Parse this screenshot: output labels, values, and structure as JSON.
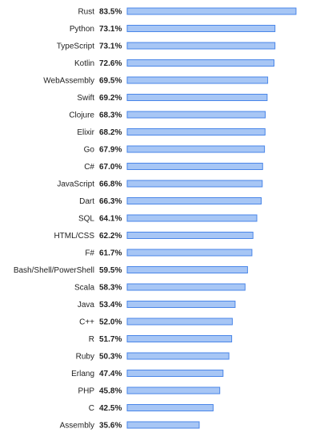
{
  "chart_data": {
    "type": "bar",
    "orientation": "horizontal",
    "title": "",
    "xlabel": "",
    "ylabel": "",
    "value_suffix": "%",
    "xlim": [
      0,
      100
    ],
    "grid": false,
    "categories": [
      "Rust",
      "Python",
      "TypeScript",
      "Kotlin",
      "WebAssembly",
      "Swift",
      "Clojure",
      "Elixir",
      "Go",
      "C#",
      "JavaScript",
      "Dart",
      "SQL",
      "HTML/CSS",
      "F#",
      "Bash/Shell/PowerShell",
      "Scala",
      "Java",
      "C++",
      "R",
      "Ruby",
      "Erlang",
      "PHP",
      "C",
      "Assembly"
    ],
    "value_labels": [
      "83.5%",
      "73.1%",
      "73.1%",
      "72.6%",
      "69.5%",
      "69.2%",
      "68.3%",
      "68.2%",
      "67.9%",
      "67.0%",
      "66.8%",
      "66.3%",
      "64.1%",
      "62.2%",
      "61.7%",
      "59.5%",
      "58.3%",
      "53.4%",
      "52.0%",
      "51.7%",
      "50.3%",
      "47.4%",
      "45.8%",
      "42.5%",
      "35.6%"
    ],
    "values": [
      83.5,
      73.1,
      73.1,
      72.6,
      69.5,
      69.2,
      68.3,
      68.2,
      67.9,
      67.0,
      66.8,
      66.3,
      64.1,
      62.2,
      61.7,
      59.5,
      58.3,
      53.4,
      52.0,
      51.7,
      50.3,
      47.4,
      45.8,
      42.5,
      35.6
    ],
    "bar_color": "#a7c6f5",
    "bar_border_color": "#4a86e8"
  }
}
